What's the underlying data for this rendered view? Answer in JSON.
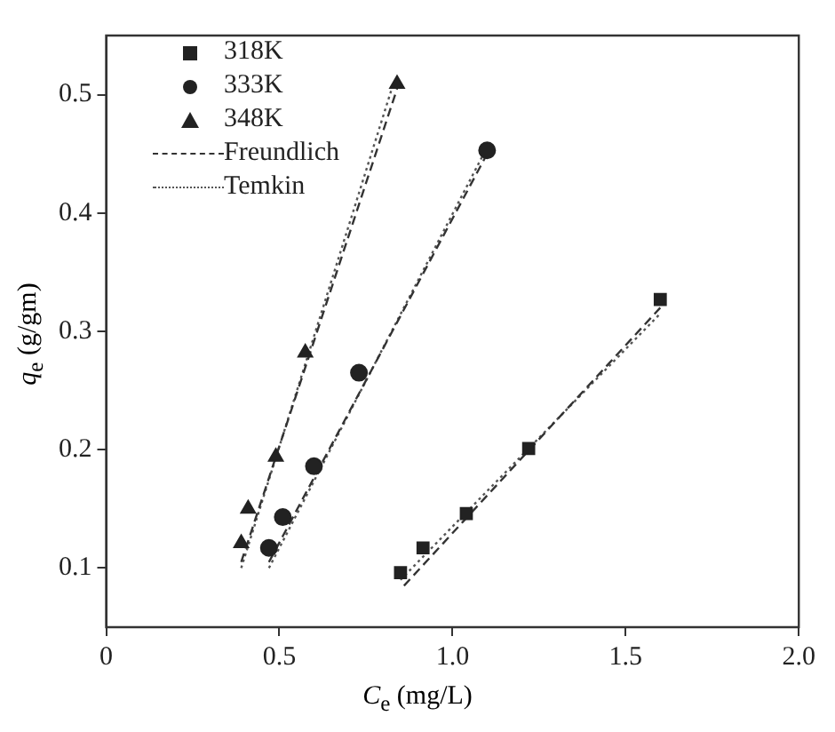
{
  "chart_data": {
    "type": "scatter",
    "xlabel": "C$_{e}$ (mg/L)",
    "ylabel": "q$_{e}$ (g/gm)",
    "xlim": [
      0,
      2
    ],
    "ylim": [
      0.05,
      0.55
    ],
    "xticks": [
      0,
      0.5,
      {
        "value": 1,
        "label": "1.0"
      },
      1.5,
      {
        "value": 2,
        "label": "2.0"
      }
    ],
    "yticks": [
      0.1,
      0.2,
      0.3,
      0.4,
      0.5
    ],
    "grid": false,
    "legend": "top left",
    "series": [
      {
        "name": "318K",
        "marker": "square",
        "color": "#222222",
        "x": [
          0.85,
          0.915,
          1.04,
          1.22,
          1.6
        ],
        "values": [
          0.096,
          0.117,
          0.146,
          0.201,
          0.327
        ]
      },
      {
        "name": "333K",
        "marker": "circle",
        "color": "#222222",
        "x": [
          0.47,
          0.51,
          0.6,
          0.73,
          1.1
        ],
        "values": [
          0.117,
          0.143,
          0.186,
          0.265,
          0.453
        ]
      },
      {
        "name": "348K",
        "marker": "triangle",
        "color": "#222222",
        "x": [
          0.39,
          0.41,
          0.49,
          0.575,
          0.84
        ],
        "values": [
          0.121,
          0.15,
          0.194,
          0.282,
          0.509
        ]
      },
      {
        "name": "Freundlich",
        "type": "line",
        "line_style": "dashed",
        "marker": "none",
        "color": "#333333",
        "x": [
          0.39,
          0.84
        ],
        "values": [
          0.105,
          0.505
        ]
      },
      {
        "name": "Temkin",
        "type": "line",
        "line_style": "dotted",
        "marker": "none",
        "color": "#555555",
        "x": [
          0.39,
          0.83
        ],
        "values": [
          0.1,
          0.51
        ]
      },
      {
        "type": "line",
        "line_style": "dashed",
        "marker": "none",
        "color": "#333333",
        "x": [
          0.47,
          1.1
        ],
        "values": [
          0.105,
          0.45
        ]
      },
      {
        "type": "line",
        "line_style": "dotted",
        "marker": "none",
        "color": "#555555",
        "x": [
          0.47,
          1.09
        ],
        "values": [
          0.1,
          0.45
        ]
      },
      {
        "type": "line",
        "line_style": "dashed",
        "marker": "none",
        "color": "#333333",
        "x": [
          0.86,
          1.6
        ],
        "values": [
          0.085,
          0.32
        ]
      },
      {
        "type": "line",
        "line_style": "dotted",
        "marker": "none",
        "color": "#555555",
        "x": [
          0.85,
          1.6
        ],
        "values": [
          0.09,
          0.315
        ]
      }
    ]
  }
}
